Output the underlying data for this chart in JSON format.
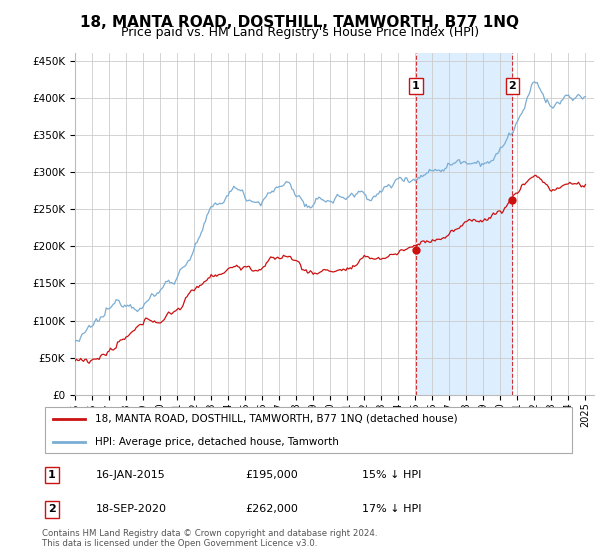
{
  "title": "18, MANTA ROAD, DOSTHILL, TAMWORTH, B77 1NQ",
  "subtitle": "Price paid vs. HM Land Registry's House Price Index (HPI)",
  "title_fontsize": 11,
  "subtitle_fontsize": 9,
  "ylabel_ticks": [
    "£0",
    "£50K",
    "£100K",
    "£150K",
    "£200K",
    "£250K",
    "£300K",
    "£350K",
    "£400K",
    "£450K"
  ],
  "ylabel_values": [
    0,
    50000,
    100000,
    150000,
    200000,
    250000,
    300000,
    350000,
    400000,
    450000
  ],
  "ylim": [
    0,
    460000
  ],
  "xlim_start": 1995.0,
  "xlim_end": 2025.5,
  "hpi_color": "#7aadd4",
  "price_color": "#cc1111",
  "annotation_color": "#cc1111",
  "shaded_region_color": "#ddeeff",
  "grid_color": "#cccccc",
  "legend_label_price": "18, MANTA ROAD, DOSTHILL, TAMWORTH, B77 1NQ (detached house)",
  "legend_label_hpi": "HPI: Average price, detached house, Tamworth",
  "event1_date": "16-JAN-2015",
  "event1_price": "£195,000",
  "event1_note": "15% ↓ HPI",
  "event1_x": 2015.04,
  "event1_y": 195000,
  "event2_date": "18-SEP-2020",
  "event2_price": "£262,000",
  "event2_note": "17% ↓ HPI",
  "event2_x": 2020.71,
  "event2_y": 262000,
  "footer": "Contains HM Land Registry data © Crown copyright and database right 2024.\nThis data is licensed under the Open Government Licence v3.0.",
  "xtick_years": [
    1995,
    1996,
    1997,
    1998,
    1999,
    2000,
    2001,
    2002,
    2003,
    2004,
    2005,
    2006,
    2007,
    2008,
    2009,
    2010,
    2011,
    2012,
    2013,
    2014,
    2015,
    2016,
    2017,
    2018,
    2019,
    2020,
    2021,
    2022,
    2023,
    2024,
    2025
  ]
}
